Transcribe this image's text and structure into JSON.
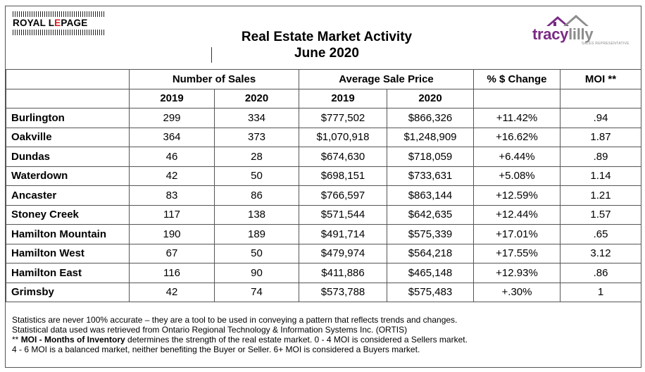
{
  "header": {
    "brand_left": {
      "text_black_1": "ROYAL L",
      "text_red": "E",
      "text_black_2": "PAGE"
    },
    "title_line1": "Real Estate Market Activity",
    "title_line2": "June 2020",
    "brand_right": {
      "part1": "tracy",
      "part2": "lilly",
      "tagline": "SALES REPRESENTATIVE"
    }
  },
  "table": {
    "group_headers": {
      "sales": "Number of Sales",
      "price": "Average Sale Price",
      "change": "% $ Change",
      "moi": "MOI **"
    },
    "year_headers": [
      "2019",
      "2020",
      "2019",
      "2020"
    ],
    "rows": [
      {
        "city": "Burlington",
        "sales_2019": "299",
        "sales_2020": "334",
        "price_2019": "$777,502",
        "price_2020": "$866,326",
        "change": "+11.42%",
        "moi": ".94"
      },
      {
        "city": "Oakville",
        "sales_2019": "364",
        "sales_2020": "373",
        "price_2019": "$1,070,918",
        "price_2020": "$1,248,909",
        "change": "+16.62%",
        "moi": "1.87"
      },
      {
        "city": "Dundas",
        "sales_2019": "46",
        "sales_2020": "28",
        "price_2019": "$674,630",
        "price_2020": "$718,059",
        "change": "+6.44%",
        "moi": ".89"
      },
      {
        "city": "Waterdown",
        "sales_2019": "42",
        "sales_2020": "50",
        "price_2019": "$698,151",
        "price_2020": "$733,631",
        "change": "+5.08%",
        "moi": "1.14"
      },
      {
        "city": "Ancaster",
        "sales_2019": "83",
        "sales_2020": "86",
        "price_2019": "$766,597",
        "price_2020": "$863,144",
        "change": "+12.59%",
        "moi": "1.21"
      },
      {
        "city": "Stoney Creek",
        "sales_2019": "117",
        "sales_2020": "138",
        "price_2019": "$571,544",
        "price_2020": "$642,635",
        "change": "+12.44%",
        "moi": "1.57"
      },
      {
        "city": "Hamilton Mountain",
        "sales_2019": "190",
        "sales_2020": "189",
        "price_2019": "$491,714",
        "price_2020": "$575,339",
        "change": "+17.01%",
        "moi": ".65"
      },
      {
        "city": "Hamilton West",
        "sales_2019": "67",
        "sales_2020": "50",
        "price_2019": "$479,974",
        "price_2020": "$564,218",
        "change": "+17.55%",
        "moi": "3.12"
      },
      {
        "city": "Hamilton East",
        "sales_2019": "116",
        "sales_2020": "90",
        "price_2019": "$411,886",
        "price_2020": "$465,148",
        "change": "+12.93%",
        "moi": ".86"
      },
      {
        "city": "Grimsby",
        "sales_2019": "42",
        "sales_2020": "74",
        "price_2019": "$573,788",
        "price_2020": "$575,483",
        "change": "+.30%",
        "moi": "1"
      }
    ]
  },
  "notes": {
    "line1": "Statistics are never 100% accurate – they are a tool to be used in conveying a pattern that reflects trends and changes.",
    "line2": "Statistical data used was retrieved from Ontario Regional Technology & Information Systems Inc. (ORTIS)",
    "line3_prefix": "** ",
    "line3_bold": "MOI - Months of Inventory",
    "line3_rest": " determines the strength of the real estate market. 0 - 4 MOI is considered a Sellers market.",
    "line4": "4 - 6 MOI is a balanced market, neither benefiting the Buyer or Seller. 6+ MOI is considered a Buyers market."
  },
  "colors": {
    "brand_red": "#d71920",
    "tracy_purple": "#7b2a86",
    "lilly_gray": "#8c8c8c",
    "border": "#555555"
  }
}
